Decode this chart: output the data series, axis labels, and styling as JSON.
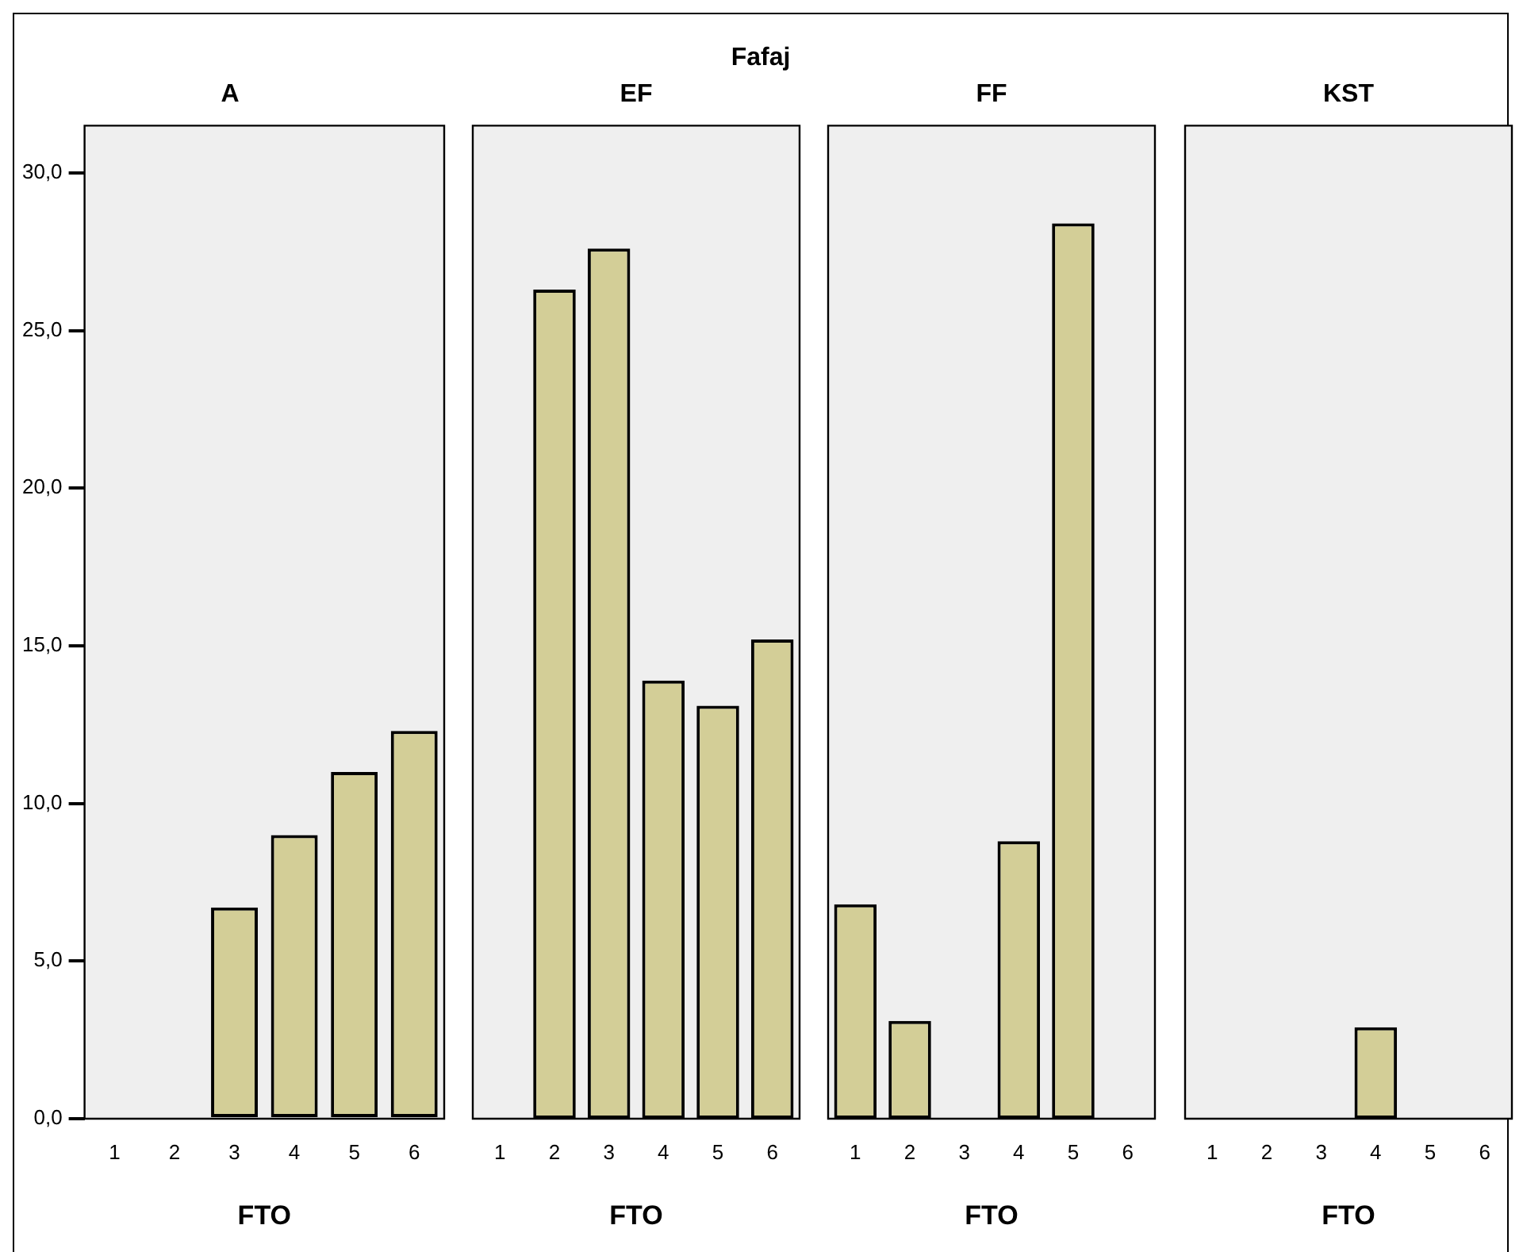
{
  "chart_data": [
    {
      "type": "bar",
      "title": "A",
      "xlabel": "FTO",
      "annotations": [
        "Fafaj"
      ],
      "categories": [
        "1",
        "2",
        "3",
        "4",
        "5",
        "6"
      ],
      "values": [
        null,
        null,
        6.7,
        9.0,
        11.0,
        12.3
      ],
      "color": "#d3ce97",
      "ylim": [
        0,
        31.5
      ],
      "yticks": [
        {
          "value": 0,
          "label": "0,0"
        },
        {
          "value": 5,
          "label": "5,0"
        },
        {
          "value": 10,
          "label": "10,0"
        },
        {
          "value": 15,
          "label": "15,0"
        },
        {
          "value": 20,
          "label": "20,0"
        },
        {
          "value": 25,
          "label": "25,0"
        },
        {
          "value": 30,
          "label": "30,0"
        }
      ],
      "grid": false,
      "legend": false
    },
    {
      "type": "bar",
      "title": "EF",
      "xlabel": "FTO",
      "categories": [
        "1",
        "2",
        "3",
        "4",
        "5",
        "6"
      ],
      "values": [
        null,
        26.3,
        27.6,
        13.9,
        13.1,
        15.2
      ],
      "color": "#d3ce97",
      "ylim": [
        0,
        31.5
      ],
      "tick_labels": "x",
      "grid": false,
      "legend": false
    },
    {
      "type": "bar",
      "title": "FF",
      "xlabel": "FTO",
      "categories": [
        "1",
        "2",
        "3",
        "4",
        "5",
        "6"
      ],
      "values": [
        6.8,
        3.1,
        null,
        8.8,
        28.4,
        null
      ],
      "color": "#d3ce97",
      "ylim": [
        0,
        31.5
      ],
      "tick_labels": "x",
      "grid": false,
      "legend": false
    },
    {
      "type": "bar",
      "title": "KST",
      "xlabel": "FTO",
      "categories": [
        "1",
        "2",
        "3",
        "4",
        "5",
        "6"
      ],
      "values": [
        null,
        null,
        null,
        2.9,
        null,
        null
      ],
      "color": "#d3ce97",
      "ylim": [
        0,
        31.5
      ],
      "tick_labels": "x",
      "grid": false,
      "legend": false
    }
  ]
}
